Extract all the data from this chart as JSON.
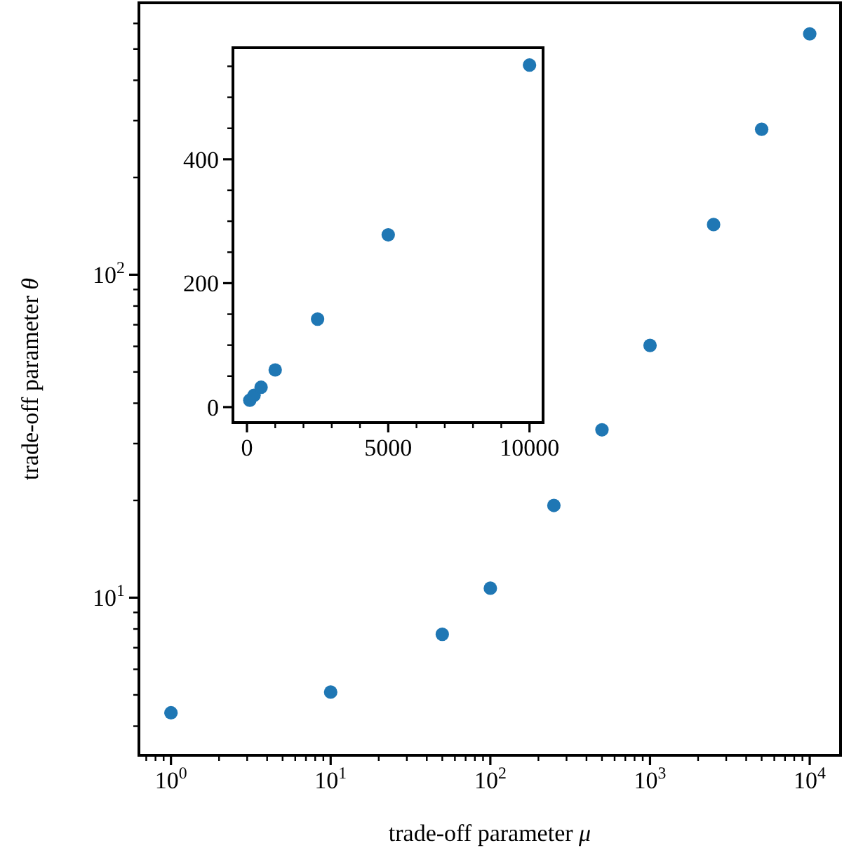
{
  "chart_data": [
    {
      "type": "scatter",
      "xlabel": "trade-off parameter μ",
      "ylabel": "trade-off parameter θ",
      "log": "xy",
      "marker": "circle",
      "color": "#1f77b4",
      "x": [
        1,
        10,
        50,
        100,
        250,
        500,
        1000,
        2500,
        5000,
        10000
      ],
      "values": [
        4.4,
        5.1,
        7.7,
        10.7,
        19.3,
        33.1,
        60.4,
        143,
        282,
        557
      ],
      "xlim": [
        0.63,
        15600
      ],
      "ylim": [
        3.25,
        695
      ],
      "xticks": [
        {
          "value": 0.7,
          "label": null
        },
        {
          "value": 0.8,
          "label": null
        },
        {
          "value": 0.9,
          "label": null
        },
        {
          "value": 1,
          "label": "10$^{0}$"
        },
        {
          "value": 2,
          "label": null
        },
        {
          "value": 3,
          "label": null
        },
        {
          "value": 4,
          "label": null
        },
        {
          "value": 5,
          "label": null
        },
        {
          "value": 6,
          "label": null
        },
        {
          "value": 7,
          "label": null
        },
        {
          "value": 8,
          "label": null
        },
        {
          "value": 9,
          "label": null
        },
        {
          "value": 10,
          "label": "10$^{1}$"
        },
        {
          "value": 20,
          "label": null
        },
        {
          "value": 30,
          "label": null
        },
        {
          "value": 40,
          "label": null
        },
        {
          "value": 50,
          "label": null
        },
        {
          "value": 60,
          "label": null
        },
        {
          "value": 70,
          "label": null
        },
        {
          "value": 80,
          "label": null
        },
        {
          "value": 90,
          "label": null
        },
        {
          "value": 100,
          "label": "10$^{2}$"
        },
        {
          "value": 200,
          "label": null
        },
        {
          "value": 300,
          "label": null
        },
        {
          "value": 400,
          "label": null
        },
        {
          "value": 500,
          "label": null
        },
        {
          "value": 600,
          "label": null
        },
        {
          "value": 700,
          "label": null
        },
        {
          "value": 800,
          "label": null
        },
        {
          "value": 900,
          "label": null
        },
        {
          "value": 1000,
          "label": "10$^{3}$"
        },
        {
          "value": 2000,
          "label": null
        },
        {
          "value": 3000,
          "label": null
        },
        {
          "value": 4000,
          "label": null
        },
        {
          "value": 5000,
          "label": null
        },
        {
          "value": 6000,
          "label": null
        },
        {
          "value": 7000,
          "label": null
        },
        {
          "value": 8000,
          "label": null
        },
        {
          "value": 9000,
          "label": null
        },
        {
          "value": 10000,
          "label": "10$^{4}$"
        }
      ],
      "yticks": [
        {
          "value": 4,
          "label": null
        },
        {
          "value": 5,
          "label": null
        },
        {
          "value": 6,
          "label": null
        },
        {
          "value": 7,
          "label": null
        },
        {
          "value": 8,
          "label": null
        },
        {
          "value": 9,
          "label": null
        },
        {
          "value": 10,
          "label": "10$^{1}$"
        },
        {
          "value": 20,
          "label": null
        },
        {
          "value": 30,
          "label": null
        },
        {
          "value": 40,
          "label": null
        },
        {
          "value": 50,
          "label": null
        },
        {
          "value": 60,
          "label": null
        },
        {
          "value": 70,
          "label": null
        },
        {
          "value": 80,
          "label": null
        },
        {
          "value": 90,
          "label": null
        },
        {
          "value": 100,
          "label": "10$^{2}$"
        },
        {
          "value": 200,
          "label": null
        },
        {
          "value": 300,
          "label": null
        },
        {
          "value": 400,
          "label": null
        },
        {
          "value": 500,
          "label": null
        },
        {
          "value": 600,
          "label": null
        }
      ]
    },
    {
      "type": "scatter",
      "marker": "circle",
      "color": "#1f77b4",
      "x": [
        100,
        250,
        500,
        1000,
        2500,
        5000,
        10000
      ],
      "values": [
        11,
        19,
        32,
        60,
        142,
        278,
        552
      ],
      "xlim": [
        -496,
        10480
      ],
      "ylim": [
        -25,
        580
      ],
      "xticks": [
        0,
        {
          "value": 1000,
          "label": null
        },
        {
          "value": 2000,
          "label": null
        },
        {
          "value": 3000,
          "label": null
        },
        {
          "value": 4000,
          "label": null
        },
        5000,
        {
          "value": 6000,
          "label": null
        },
        {
          "value": 7000,
          "label": null
        },
        {
          "value": 8000,
          "label": null
        },
        {
          "value": 9000,
          "label": null
        },
        10000
      ],
      "yticks": [
        0,
        {
          "value": 50,
          "label": null
        },
        {
          "value": 100,
          "label": null
        },
        {
          "value": 150,
          "label": null
        },
        200,
        {
          "value": 250,
          "label": null
        },
        {
          "value": 300,
          "label": null
        },
        {
          "value": 350,
          "label": null
        },
        400,
        {
          "value": 450,
          "label": null
        },
        {
          "value": 500,
          "label": null
        },
        {
          "value": 550,
          "label": null
        }
      ]
    }
  ]
}
